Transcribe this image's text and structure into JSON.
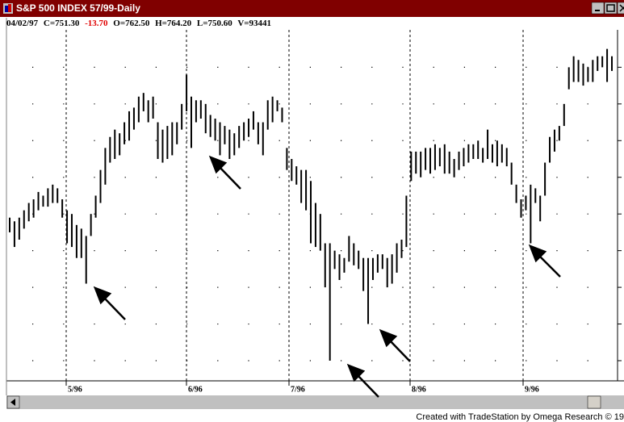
{
  "window_title": "S&P 500 INDEX 57/99-Daily",
  "quote": {
    "date": "04/02/97",
    "close": "C=751.30",
    "change": "-13.70",
    "open": "O=762.50",
    "high": "H=764.20",
    "low": "L=750.60",
    "volume": "V=93441"
  },
  "footer": "Created with TradeStation by Omega Research © 19",
  "chart_data": {
    "type": "range-bar",
    "x_labels": [
      "5/96",
      "6/96",
      "7/96",
      "8/96",
      "9/96"
    ],
    "high": [
      649,
      648,
      649,
      651,
      653,
      654,
      656,
      655,
      657,
      658,
      657,
      654,
      651,
      650,
      647,
      646,
      644,
      650,
      655,
      662,
      668,
      671,
      673,
      672,
      675,
      678,
      679,
      682,
      683,
      681,
      682,
      675,
      673,
      674,
      675,
      675,
      680,
      688,
      682,
      681,
      681,
      680,
      677,
      676,
      675,
      674,
      673,
      672,
      674,
      675,
      676,
      678,
      675,
      675,
      681,
      682,
      681,
      679,
      668,
      665,
      663,
      662,
      662,
      659,
      653,
      650,
      642,
      642,
      640,
      639,
      638,
      644,
      642,
      640,
      638,
      638,
      638,
      639,
      639,
      638,
      639,
      642,
      643,
      655,
      667,
      667,
      667,
      668,
      668,
      669,
      668,
      669,
      667,
      665,
      667,
      668,
      669,
      669,
      670,
      668,
      673,
      669,
      670,
      669,
      668,
      664,
      658,
      654,
      655,
      658,
      657,
      655,
      664,
      671,
      673,
      674,
      680,
      690,
      693,
      692,
      691,
      690,
      692,
      693,
      693,
      695,
      693
    ],
    "low": [
      645,
      641,
      643,
      646,
      648,
      649,
      651,
      652,
      652,
      653,
      653,
      649,
      642,
      641,
      638,
      638,
      631,
      644,
      649,
      653,
      658,
      664,
      665,
      666,
      669,
      670,
      673,
      675,
      678,
      675,
      676,
      665,
      664,
      665,
      666,
      669,
      673,
      678,
      668,
      675,
      676,
      672,
      671,
      670,
      666,
      669,
      665,
      666,
      668,
      670,
      671,
      673,
      669,
      666,
      673,
      675,
      678,
      675,
      662,
      659,
      658,
      653,
      651,
      642,
      641,
      640,
      630,
      610,
      635,
      632,
      634,
      637,
      636,
      635,
      629,
      620,
      632,
      634,
      635,
      630,
      631,
      634,
      638,
      641,
      659,
      661,
      660,
      662,
      661,
      662,
      663,
      661,
      661,
      660,
      662,
      663,
      664,
      665,
      665,
      664,
      665,
      664,
      663,
      664,
      663,
      658,
      653,
      649,
      651,
      642,
      653,
      648,
      655,
      664,
      667,
      670,
      674,
      684,
      686,
      686,
      685,
      686,
      686,
      689,
      690,
      686,
      689
    ],
    "color": "#000000",
    "ylim": [
      604.5,
      700.2
    ],
    "yticks": [
      610,
      620,
      630,
      640,
      650,
      660,
      670,
      680,
      690
    ],
    "grid": true
  }
}
